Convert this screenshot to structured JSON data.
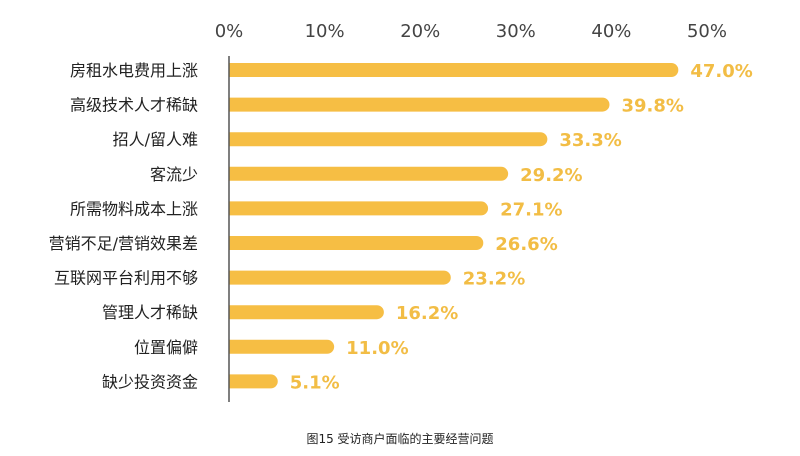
{
  "chart_data": {
    "type": "bar",
    "orientation": "horizontal",
    "title": "图15  受访商户面临的主要经营问题",
    "categories": [
      "房租水电费用上涨",
      "高级技术人才稀缺",
      "招人/留人难",
      "客流少",
      "所需物料成本上涨",
      "营销不足/营销效果差",
      "互联网平台利用不够",
      "管理人才稀缺",
      "位置偏僻",
      "缺少投资资金"
    ],
    "values": [
      47.0,
      39.8,
      33.3,
      29.2,
      27.1,
      26.6,
      23.2,
      16.2,
      11.0,
      5.1
    ],
    "value_labels": [
      "47.0%",
      "39.8%",
      "33.3%",
      "29.2%",
      "27.1%",
      "26.6%",
      "23.2%",
      "16.2%",
      "11.0%",
      "5.1%"
    ],
    "x_ticks": [
      0,
      10,
      20,
      30,
      40,
      50
    ],
    "x_tick_labels": [
      "0%",
      "10%",
      "20%",
      "30%",
      "40%",
      "50%"
    ],
    "xlim": [
      0,
      50
    ],
    "xlabel": "",
    "ylabel": "",
    "axis_position": "top",
    "grid": false,
    "legend": "none",
    "colors": {
      "bar": "#F6BE44",
      "value_label": "#F2BD45",
      "axis": "#555555",
      "text": "#222222",
      "tick_text": "#444444"
    }
  }
}
